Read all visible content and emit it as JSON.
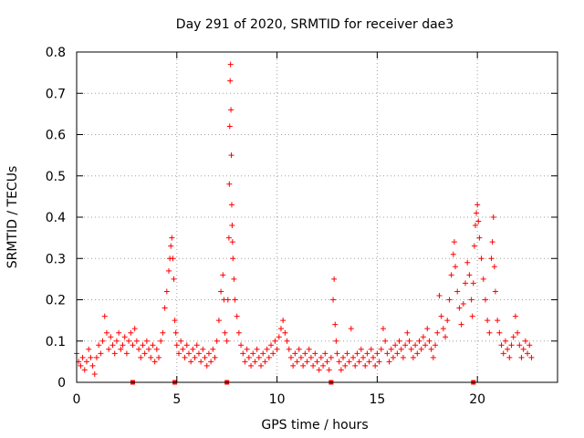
{
  "chart_data": {
    "type": "scatter",
    "title": "Day 291 of 2020, SRMTID for receiver dae3",
    "xlabel": "GPS time / hours",
    "ylabel": "SRMTID / TECUs",
    "xlim": [
      0,
      24
    ],
    "ylim": [
      0,
      0.8
    ],
    "xticks": [
      0,
      5,
      10,
      15,
      20
    ],
    "xtick_labels": [
      "0",
      "5",
      "10",
      "15",
      "20"
    ],
    "yticks": [
      0,
      0.1,
      0.2,
      0.3,
      0.4,
      0.5,
      0.6,
      0.7,
      0.8
    ],
    "ytick_labels": [
      "0",
      "0.1",
      "0.2",
      "0.3",
      "0.4",
      "0.5",
      "0.6",
      "0.7",
      "0.8"
    ],
    "grid": true,
    "marker": "plus",
    "color": "#ff0000",
    "series": [
      {
        "name": "SRMTID",
        "points": [
          [
            0.0,
            0.07
          ],
          [
            0.1,
            0.05
          ],
          [
            0.2,
            0.04
          ],
          [
            0.3,
            0.06
          ],
          [
            0.4,
            0.03
          ],
          [
            0.5,
            0.05
          ],
          [
            0.6,
            0.08
          ],
          [
            0.7,
            0.06
          ],
          [
            0.8,
            0.04
          ],
          [
            0.9,
            0.02
          ],
          [
            1.0,
            0.06
          ],
          [
            1.1,
            0.09
          ],
          [
            1.2,
            0.07
          ],
          [
            1.3,
            0.1
          ],
          [
            1.4,
            0.16
          ],
          [
            1.5,
            0.12
          ],
          [
            1.6,
            0.08
          ],
          [
            1.7,
            0.11
          ],
          [
            1.8,
            0.09
          ],
          [
            1.9,
            0.07
          ],
          [
            2.0,
            0.1
          ],
          [
            2.1,
            0.12
          ],
          [
            2.2,
            0.08
          ],
          [
            2.3,
            0.09
          ],
          [
            2.4,
            0.11
          ],
          [
            2.5,
            0.07
          ],
          [
            2.6,
            0.1
          ],
          [
            2.7,
            0.12
          ],
          [
            2.8,
            0.09
          ],
          [
            2.9,
            0.13
          ],
          [
            3.0,
            0.1
          ],
          [
            3.1,
            0.08
          ],
          [
            3.2,
            0.06
          ],
          [
            3.3,
            0.09
          ],
          [
            3.4,
            0.07
          ],
          [
            3.5,
            0.1
          ],
          [
            3.6,
            0.08
          ],
          [
            3.7,
            0.06
          ],
          [
            3.8,
            0.09
          ],
          [
            3.9,
            0.05
          ],
          [
            4.0,
            0.08
          ],
          [
            4.1,
            0.06
          ],
          [
            4.2,
            0.1
          ],
          [
            4.3,
            0.12
          ],
          [
            4.4,
            0.18
          ],
          [
            4.5,
            0.22
          ],
          [
            4.6,
            0.27
          ],
          [
            4.65,
            0.3
          ],
          [
            4.7,
            0.33
          ],
          [
            4.75,
            0.35
          ],
          [
            4.8,
            0.3
          ],
          [
            4.85,
            0.25
          ],
          [
            4.9,
            0.15
          ],
          [
            4.95,
            0.12
          ],
          [
            5.0,
            0.09
          ],
          [
            5.1,
            0.07
          ],
          [
            5.2,
            0.1
          ],
          [
            5.3,
            0.08
          ],
          [
            5.4,
            0.06
          ],
          [
            5.5,
            0.09
          ],
          [
            5.6,
            0.07
          ],
          [
            5.7,
            0.05
          ],
          [
            5.8,
            0.08
          ],
          [
            5.9,
            0.06
          ],
          [
            6.0,
            0.09
          ],
          [
            6.1,
            0.07
          ],
          [
            6.2,
            0.05
          ],
          [
            6.3,
            0.08
          ],
          [
            6.4,
            0.06
          ],
          [
            6.5,
            0.04
          ],
          [
            6.6,
            0.07
          ],
          [
            6.7,
            0.05
          ],
          [
            6.8,
            0.08
          ],
          [
            6.9,
            0.06
          ],
          [
            7.0,
            0.1
          ],
          [
            7.1,
            0.15
          ],
          [
            7.2,
            0.22
          ],
          [
            7.3,
            0.26
          ],
          [
            7.35,
            0.2
          ],
          [
            7.4,
            0.12
          ],
          [
            7.5,
            0.1
          ],
          [
            7.55,
            0.2
          ],
          [
            7.6,
            0.35
          ],
          [
            7.62,
            0.48
          ],
          [
            7.64,
            0.62
          ],
          [
            7.66,
            0.73
          ],
          [
            7.68,
            0.77
          ],
          [
            7.7,
            0.66
          ],
          [
            7.72,
            0.55
          ],
          [
            7.74,
            0.43
          ],
          [
            7.76,
            0.38
          ],
          [
            7.78,
            0.34
          ],
          [
            7.8,
            0.3
          ],
          [
            7.85,
            0.25
          ],
          [
            7.9,
            0.2
          ],
          [
            8.0,
            0.16
          ],
          [
            8.1,
            0.12
          ],
          [
            8.2,
            0.09
          ],
          [
            8.3,
            0.07
          ],
          [
            8.4,
            0.05
          ],
          [
            8.5,
            0.08
          ],
          [
            8.6,
            0.06
          ],
          [
            8.7,
            0.04
          ],
          [
            8.8,
            0.07
          ],
          [
            8.9,
            0.05
          ],
          [
            9.0,
            0.08
          ],
          [
            9.1,
            0.06
          ],
          [
            9.2,
            0.04
          ],
          [
            9.3,
            0.07
          ],
          [
            9.4,
            0.05
          ],
          [
            9.5,
            0.08
          ],
          [
            9.6,
            0.06
          ],
          [
            9.7,
            0.09
          ],
          [
            9.8,
            0.07
          ],
          [
            9.9,
            0.1
          ],
          [
            10.0,
            0.08
          ],
          [
            10.1,
            0.11
          ],
          [
            10.2,
            0.13
          ],
          [
            10.3,
            0.15
          ],
          [
            10.4,
            0.12
          ],
          [
            10.5,
            0.1
          ],
          [
            10.6,
            0.08
          ],
          [
            10.7,
            0.06
          ],
          [
            10.8,
            0.04
          ],
          [
            10.9,
            0.07
          ],
          [
            11.0,
            0.05
          ],
          [
            11.1,
            0.08
          ],
          [
            11.2,
            0.06
          ],
          [
            11.3,
            0.04
          ],
          [
            11.4,
            0.07
          ],
          [
            11.5,
            0.05
          ],
          [
            11.6,
            0.08
          ],
          [
            11.7,
            0.06
          ],
          [
            11.8,
            0.04
          ],
          [
            11.9,
            0.07
          ],
          [
            12.0,
            0.05
          ],
          [
            12.1,
            0.03
          ],
          [
            12.2,
            0.06
          ],
          [
            12.3,
            0.04
          ],
          [
            12.4,
            0.07
          ],
          [
            12.5,
            0.05
          ],
          [
            12.6,
            0.03
          ],
          [
            12.7,
            0.06
          ],
          [
            12.8,
            0.2
          ],
          [
            12.85,
            0.25
          ],
          [
            12.9,
            0.14
          ],
          [
            12.95,
            0.1
          ],
          [
            13.0,
            0.07
          ],
          [
            13.1,
            0.05
          ],
          [
            13.2,
            0.03
          ],
          [
            13.3,
            0.06
          ],
          [
            13.4,
            0.04
          ],
          [
            13.5,
            0.07
          ],
          [
            13.6,
            0.05
          ],
          [
            13.7,
            0.13
          ],
          [
            13.8,
            0.06
          ],
          [
            13.9,
            0.04
          ],
          [
            14.0,
            0.07
          ],
          [
            14.1,
            0.05
          ],
          [
            14.2,
            0.08
          ],
          [
            14.3,
            0.06
          ],
          [
            14.4,
            0.04
          ],
          [
            14.5,
            0.07
          ],
          [
            14.6,
            0.05
          ],
          [
            14.7,
            0.08
          ],
          [
            14.8,
            0.06
          ],
          [
            14.9,
            0.04
          ],
          [
            15.0,
            0.07
          ],
          [
            15.1,
            0.05
          ],
          [
            15.2,
            0.08
          ],
          [
            15.3,
            0.13
          ],
          [
            15.4,
            0.1
          ],
          [
            15.5,
            0.07
          ],
          [
            15.6,
            0.05
          ],
          [
            15.7,
            0.08
          ],
          [
            15.8,
            0.06
          ],
          [
            15.9,
            0.09
          ],
          [
            16.0,
            0.07
          ],
          [
            16.1,
            0.1
          ],
          [
            16.2,
            0.08
          ],
          [
            16.3,
            0.06
          ],
          [
            16.4,
            0.09
          ],
          [
            16.5,
            0.12
          ],
          [
            16.6,
            0.1
          ],
          [
            16.7,
            0.08
          ],
          [
            16.8,
            0.06
          ],
          [
            16.9,
            0.09
          ],
          [
            17.0,
            0.07
          ],
          [
            17.1,
            0.1
          ],
          [
            17.2,
            0.08
          ],
          [
            17.3,
            0.11
          ],
          [
            17.4,
            0.09
          ],
          [
            17.5,
            0.13
          ],
          [
            17.6,
            0.1
          ],
          [
            17.7,
            0.08
          ],
          [
            17.8,
            0.06
          ],
          [
            17.9,
            0.09
          ],
          [
            18.0,
            0.12
          ],
          [
            18.1,
            0.21
          ],
          [
            18.2,
            0.16
          ],
          [
            18.3,
            0.13
          ],
          [
            18.4,
            0.11
          ],
          [
            18.5,
            0.15
          ],
          [
            18.6,
            0.2
          ],
          [
            18.7,
            0.26
          ],
          [
            18.8,
            0.31
          ],
          [
            18.85,
            0.34
          ],
          [
            18.9,
            0.28
          ],
          [
            19.0,
            0.22
          ],
          [
            19.1,
            0.18
          ],
          [
            19.2,
            0.14
          ],
          [
            19.3,
            0.19
          ],
          [
            19.4,
            0.24
          ],
          [
            19.5,
            0.29
          ],
          [
            19.6,
            0.26
          ],
          [
            19.7,
            0.2
          ],
          [
            19.75,
            0.16
          ],
          [
            19.8,
            0.24
          ],
          [
            19.85,
            0.33
          ],
          [
            19.9,
            0.38
          ],
          [
            19.95,
            0.41
          ],
          [
            20.0,
            0.43
          ],
          [
            20.05,
            0.39
          ],
          [
            20.1,
            0.35
          ],
          [
            20.2,
            0.3
          ],
          [
            20.3,
            0.25
          ],
          [
            20.4,
            0.2
          ],
          [
            20.5,
            0.15
          ],
          [
            20.6,
            0.12
          ],
          [
            20.7,
            0.3
          ],
          [
            20.75,
            0.34
          ],
          [
            20.8,
            0.4
          ],
          [
            20.85,
            0.28
          ],
          [
            20.9,
            0.22
          ],
          [
            21.0,
            0.15
          ],
          [
            21.1,
            0.12
          ],
          [
            21.2,
            0.09
          ],
          [
            21.3,
            0.07
          ],
          [
            21.4,
            0.1
          ],
          [
            21.5,
            0.08
          ],
          [
            21.6,
            0.06
          ],
          [
            21.7,
            0.09
          ],
          [
            21.8,
            0.11
          ],
          [
            21.9,
            0.16
          ],
          [
            22.0,
            0.12
          ],
          [
            22.1,
            0.09
          ],
          [
            22.2,
            0.06
          ],
          [
            22.3,
            0.08
          ],
          [
            22.4,
            0.1
          ],
          [
            22.5,
            0.07
          ],
          [
            22.6,
            0.09
          ],
          [
            22.7,
            0.06
          ]
        ]
      }
    ],
    "gap_markers_x": [
      2.8,
      4.9,
      7.5,
      12.7,
      19.8
    ]
  }
}
